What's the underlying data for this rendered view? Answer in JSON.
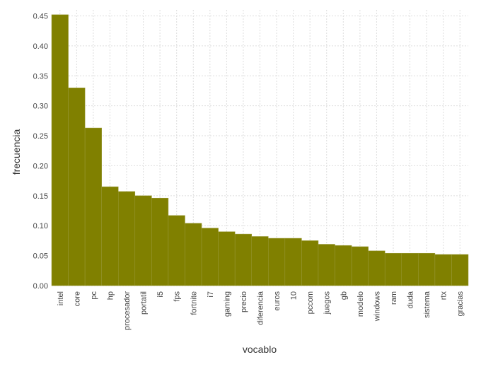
{
  "chart_data": {
    "type": "bar",
    "xlabel": "vocablo",
    "ylabel": "frecuencia",
    "ylim": [
      0,
      0.46
    ],
    "yticks": [
      "0.00",
      "0.05",
      "0.10",
      "0.15",
      "0.20",
      "0.25",
      "0.30",
      "0.35",
      "0.40",
      "0.45"
    ],
    "grid": true,
    "bar_color": "#808000",
    "categories": [
      "intel",
      "core",
      "pc",
      "hp",
      "procesador",
      "portatil",
      "i5",
      "fps",
      "fortnite",
      "i7",
      "gaming",
      "precio",
      "diferencia",
      "euros",
      "10",
      "pccom",
      "juegos",
      "gb",
      "modelo",
      "windows",
      "ram",
      "duda",
      "sistema",
      "rtx",
      "gracias"
    ],
    "values": [
      0.452,
      0.33,
      0.263,
      0.165,
      0.157,
      0.15,
      0.146,
      0.117,
      0.104,
      0.096,
      0.09,
      0.086,
      0.082,
      0.079,
      0.079,
      0.075,
      0.069,
      0.067,
      0.065,
      0.058,
      0.054,
      0.054,
      0.054,
      0.052,
      0.052
    ]
  }
}
